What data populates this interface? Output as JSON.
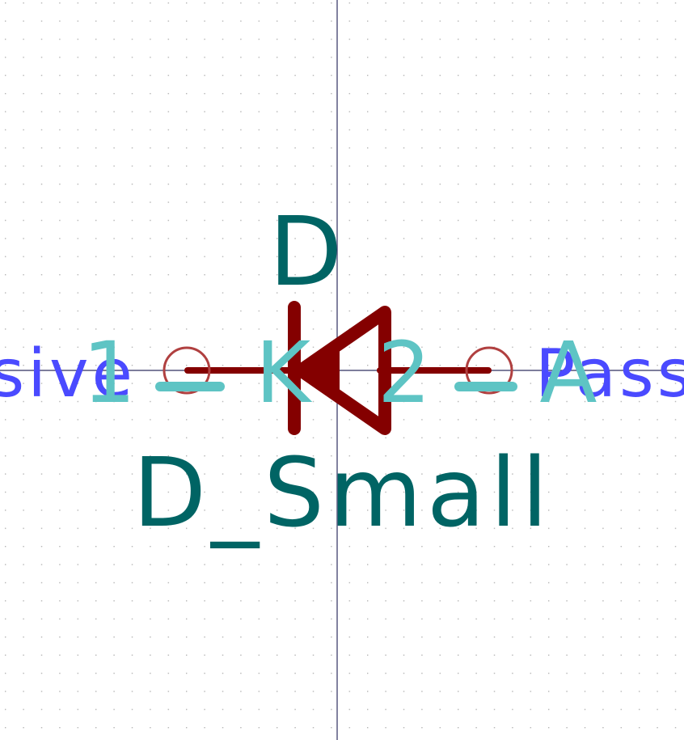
{
  "schematic": {
    "reference": "D",
    "value": "D_Small",
    "pins": {
      "left": {
        "number": "1",
        "name": "K",
        "type": "Passive"
      },
      "right": {
        "number": "2",
        "name": "A",
        "type": "Passive"
      }
    },
    "colors": {
      "background": "#ffffff",
      "grid_dot": "#b4b4b4",
      "crosshair": "#303060",
      "body": "#840000",
      "pin": "#840000",
      "pin_text": "#5ec4c4",
      "field_text": "#006464",
      "electrical_type": "#4a4aff",
      "pin_circle": "#b04040"
    }
  }
}
